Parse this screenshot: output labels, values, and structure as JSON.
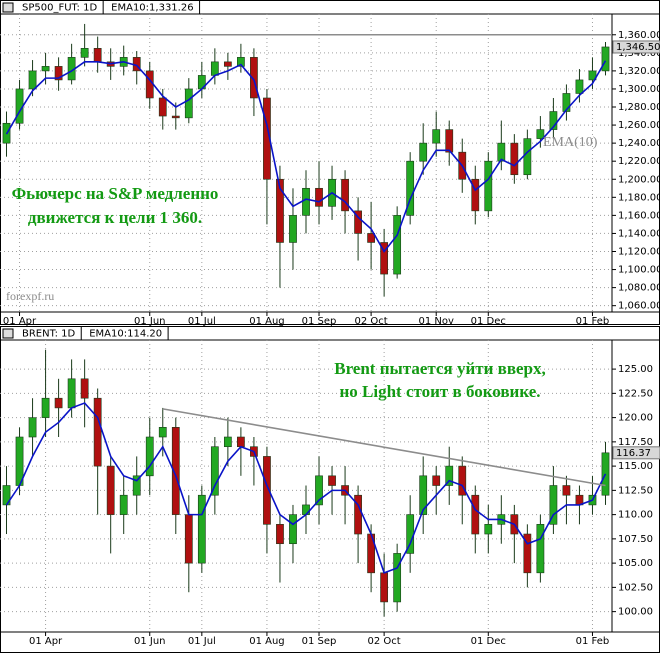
{
  "chart_data": [
    {
      "type": "candlestick",
      "log_scale": false,
      "grid": true,
      "categories": [
        null,
        "01 Apr",
        null,
        null,
        null,
        null,
        null,
        null,
        null,
        null,
        null,
        "01 Jun",
        null,
        null,
        null,
        "01 Jul",
        null,
        null,
        null,
        null,
        "01 Aug",
        null,
        null,
        null,
        "01 Sep",
        null,
        null,
        null,
        "02 Oct",
        null,
        null,
        null,
        null,
        "01 Nov",
        null,
        null,
        null,
        "01 Dec",
        null,
        null,
        null,
        null,
        null,
        null,
        null,
        "01 Feb",
        null
      ],
      "series": [
        {
          "name": "SP500_FUT: 1D",
          "type": "candlestick",
          "up_color": "#22a822",
          "down_color": "#b01010",
          "open": [
            1240,
            1262,
            1300,
            1320,
            1325,
            1310,
            1335,
            1345,
            1330,
            1325,
            1335,
            1320,
            1290,
            1270,
            1268,
            1300,
            1315,
            1330,
            1325,
            1335,
            1290,
            1200,
            1130,
            1160,
            1190,
            1170,
            1200,
            1165,
            1140,
            1130,
            1095,
            1160,
            1220,
            1240,
            1255,
            1230,
            1200,
            1165,
            1220,
            1240,
            1205,
            1245,
            1255,
            1275,
            1295,
            1310,
            1320
          ],
          "high": [
            1275,
            1310,
            1332,
            1340,
            1335,
            1350,
            1372,
            1358,
            1345,
            1348,
            1342,
            1330,
            1300,
            1285,
            1312,
            1330,
            1345,
            1340,
            1350,
            1345,
            1300,
            1215,
            1190,
            1210,
            1220,
            1215,
            1210,
            1180,
            1175,
            1145,
            1170,
            1230,
            1262,
            1275,
            1265,
            1245,
            1215,
            1230,
            1265,
            1250,
            1255,
            1270,
            1290,
            1305,
            1322,
            1335,
            1352
          ],
          "low": [
            1225,
            1255,
            1292,
            1305,
            1298,
            1305,
            1325,
            1318,
            1310,
            1315,
            1305,
            1278,
            1255,
            1255,
            1262,
            1290,
            1305,
            1310,
            1318,
            1270,
            1150,
            1080,
            1100,
            1140,
            1150,
            1155,
            1140,
            1110,
            1100,
            1070,
            1090,
            1150,
            1205,
            1225,
            1215,
            1185,
            1150,
            1158,
            1210,
            1195,
            1200,
            1235,
            1245,
            1265,
            1285,
            1300,
            1315
          ],
          "close": [
            1262,
            1300,
            1320,
            1325,
            1310,
            1335,
            1345,
            1330,
            1325,
            1335,
            1320,
            1290,
            1270,
            1268,
            1300,
            1315,
            1330,
            1325,
            1335,
            1290,
            1200,
            1130,
            1160,
            1190,
            1170,
            1200,
            1165,
            1140,
            1130,
            1095,
            1160,
            1220,
            1240,
            1255,
            1230,
            1200,
            1165,
            1220,
            1240,
            1205,
            1245,
            1255,
            1275,
            1295,
            1310,
            1320,
            1346.5
          ]
        },
        {
          "name": "EMA10:1,331.26",
          "type": "line",
          "color": "#0a14c8",
          "values": [
            1250,
            1275,
            1298,
            1312,
            1312,
            1320,
            1330,
            1330,
            1328,
            1330,
            1326,
            1310,
            1292,
            1280,
            1288,
            1300,
            1315,
            1320,
            1327,
            1310,
            1260,
            1190,
            1170,
            1178,
            1175,
            1185,
            1175,
            1158,
            1145,
            1120,
            1138,
            1178,
            1210,
            1232,
            1232,
            1215,
            1188,
            1200,
            1222,
            1215,
            1230,
            1242,
            1258,
            1277,
            1293,
            1306,
            1331.26
          ]
        }
      ],
      "ylim": [
        1053,
        1383
      ],
      "yticks": [
        {
          "value": 1060,
          "label": "1,060.00"
        },
        {
          "value": 1080,
          "label": "1,080.00"
        },
        {
          "value": 1100,
          "label": "1,100.00"
        },
        {
          "value": 1120,
          "label": "1,120.00"
        },
        {
          "value": 1140,
          "label": "1,140.00"
        },
        {
          "value": 1160,
          "label": "1,160.00"
        },
        {
          "value": 1180,
          "label": "1,180.00"
        },
        {
          "value": 1200,
          "label": "1,200.00"
        },
        {
          "value": 1220,
          "label": "1,220.00"
        },
        {
          "value": 1240,
          "label": "1,240.00"
        },
        {
          "value": 1260,
          "label": "1,260.00"
        },
        {
          "value": 1280,
          "label": "1,280.00"
        },
        {
          "value": 1300,
          "label": "1,300.00"
        },
        {
          "value": 1320,
          "label": "1,320.00"
        },
        {
          "value": 1340,
          "label": "1,340.00"
        },
        {
          "value": 1360,
          "label": "1,360.00"
        }
      ],
      "hline": 1360,
      "hline_color": "#8c8c8c",
      "last_label": "1,346.50",
      "annotations": [
        "Фьючерс на S&P медленно",
        "движется к цели 1 360.",
        "EMA(10)",
        "forexpf.ru"
      ]
    },
    {
      "type": "candlestick",
      "log_scale": false,
      "grid": true,
      "categories": [
        null,
        null,
        null,
        "01 Apr",
        null,
        null,
        null,
        null,
        null,
        null,
        null,
        "01 Jun",
        null,
        null,
        null,
        "01 Jul",
        null,
        null,
        null,
        null,
        "01 Aug",
        null,
        null,
        null,
        "01 Sep",
        null,
        null,
        null,
        null,
        "02 Oct",
        null,
        null,
        null,
        null,
        null,
        null,
        null,
        "01 Dec",
        null,
        null,
        null,
        null,
        null,
        null,
        null,
        "01 Feb",
        null
      ],
      "series": [
        {
          "name": "BRENT: 1D",
          "type": "candlestick",
          "up_color": "#22a822",
          "down_color": "#b01010",
          "open": [
            111,
            113,
            118,
            120,
            122,
            121,
            124,
            122,
            115,
            110,
            112,
            114,
            118,
            119,
            110,
            105,
            112,
            117,
            118,
            117,
            116,
            109,
            107,
            110,
            111,
            114,
            113,
            112,
            108,
            104,
            101,
            106,
            110,
            114,
            113,
            115,
            112,
            108,
            109,
            110,
            108,
            104,
            109,
            113,
            112,
            111,
            112
          ],
          "high": [
            115,
            119,
            122,
            127,
            124,
            126,
            126,
            123,
            116,
            114,
            116,
            120,
            121,
            120,
            112,
            113,
            118,
            120,
            119,
            118,
            117,
            110,
            111,
            113,
            116,
            115,
            115,
            113,
            109,
            106,
            107,
            112,
            116,
            115,
            117,
            116,
            113,
            111,
            112,
            111,
            109,
            110,
            115,
            114,
            113,
            114,
            117.5
          ],
          "low": [
            108,
            112,
            116,
            118,
            118,
            120,
            119,
            110,
            106,
            108,
            110,
            112,
            116,
            108,
            102,
            104,
            110,
            115,
            114,
            113,
            106,
            103,
            105,
            108,
            109,
            110,
            109,
            105,
            102,
            99.5,
            100,
            104,
            108,
            110,
            111,
            109,
            106,
            106,
            107,
            105,
            102.5,
            103,
            108,
            109,
            109,
            110,
            111
          ],
          "close": [
            113,
            118,
            120,
            122,
            121,
            124,
            122,
            115,
            110,
            112,
            114,
            118,
            119,
            110,
            105,
            112,
            117,
            118,
            117,
            116,
            109,
            107,
            110,
            111,
            114,
            113,
            112,
            108,
            104,
            101,
            106,
            110,
            114,
            113,
            115,
            112,
            108,
            109,
            110,
            108,
            104,
            109,
            113,
            112,
            111,
            112,
            116.37
          ]
        },
        {
          "name": "EMA10:114.20",
          "type": "line",
          "color": "#0a14c8",
          "values": [
            111,
            113,
            116,
            118.5,
            119.5,
            121,
            121.5,
            120,
            116,
            114,
            113.5,
            115,
            117,
            114,
            110,
            110,
            113,
            115.5,
            117,
            116.5,
            113,
            110,
            109,
            110,
            111.5,
            112.5,
            112.5,
            111,
            108,
            104,
            104.5,
            107,
            110.5,
            112,
            113.5,
            113,
            110.5,
            109.5,
            109.5,
            109,
            107,
            107.5,
            110,
            111,
            111,
            111.5,
            114.2
          ]
        }
      ],
      "ylim": [
        97.9,
        128
      ],
      "yticks": [
        {
          "value": 100,
          "label": "100.00"
        },
        {
          "value": 102.5,
          "label": "102.50"
        },
        {
          "value": 105,
          "label": "105.00"
        },
        {
          "value": 107.5,
          "label": "107.50"
        },
        {
          "value": 110,
          "label": "110.00"
        },
        {
          "value": 112.5,
          "label": "112.50"
        },
        {
          "value": 115,
          "label": "115.00"
        },
        {
          "value": 117.5,
          "label": "117.50"
        },
        {
          "value": 120,
          "label": "120.00"
        },
        {
          "value": 122.5,
          "label": "122.50"
        },
        {
          "value": 125,
          "label": "125.00"
        }
      ],
      "trendline": {
        "x": [
          12,
          46
        ],
        "y": [
          120.9,
          113
        ],
        "color": "#8c8c8c"
      },
      "last_label": "116.37",
      "annotations": [
        "Brent пытается уйти вверх,",
        "но Light стоит в боковике."
      ]
    }
  ]
}
